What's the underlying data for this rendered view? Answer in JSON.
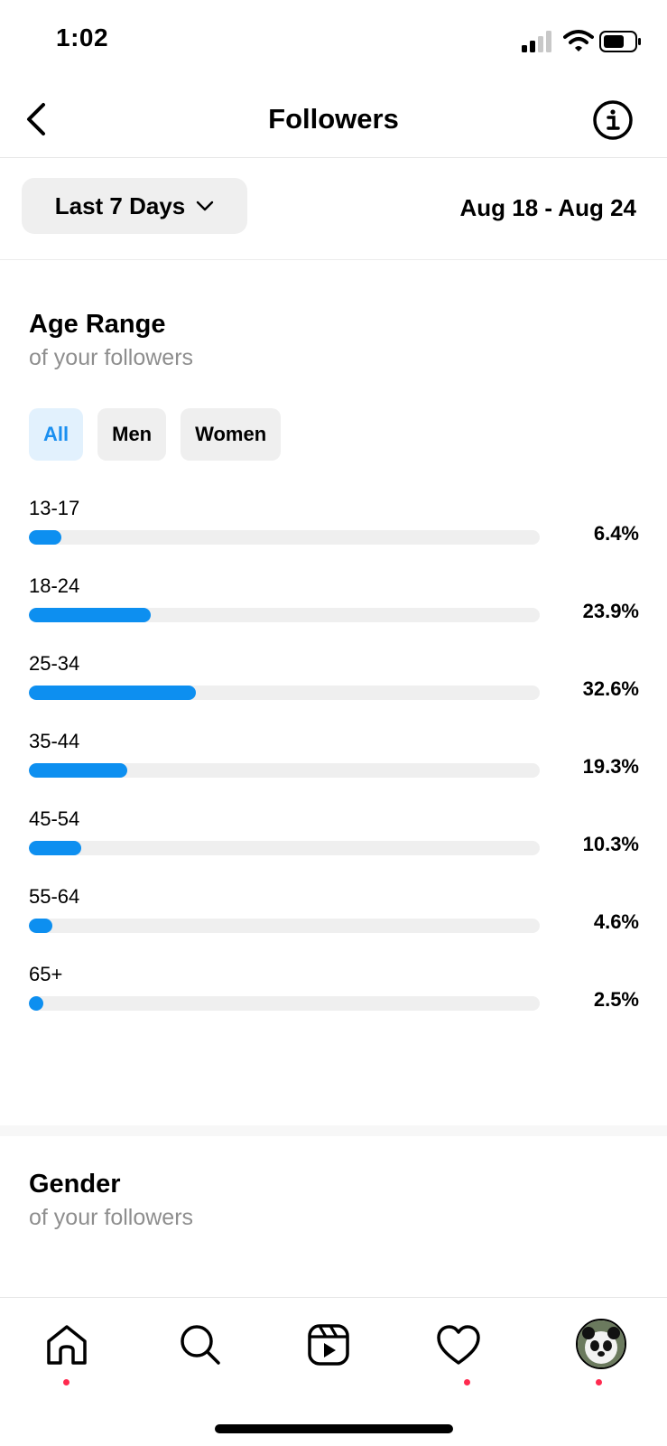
{
  "status": {
    "time": "1:02"
  },
  "header": {
    "title": "Followers"
  },
  "filter": {
    "period": "Last 7 Days",
    "date_range": "Aug 18 - Aug 24"
  },
  "age_section": {
    "title": "Age Range",
    "subtitle": "of your followers",
    "chips": [
      "All",
      "Men",
      "Women"
    ],
    "active_chip": "All",
    "accent_color": "#0d8ff0"
  },
  "chart_data": {
    "type": "bar",
    "categories": [
      "13-17",
      "18-24",
      "25-34",
      "35-44",
      "45-54",
      "55-64",
      "65+"
    ],
    "values": [
      6.4,
      23.9,
      32.6,
      19.3,
      10.3,
      4.6,
      2.5
    ],
    "value_labels": [
      "6.4%",
      "23.9%",
      "32.6%",
      "19.3%",
      "10.3%",
      "4.6%",
      "2.5%"
    ],
    "scale_max": 100
  },
  "gender_section": {
    "title": "Gender",
    "subtitle": "of your followers"
  },
  "nav": {
    "items": [
      "home-icon",
      "search-icon",
      "reels-icon",
      "heart-icon",
      "profile-avatar"
    ],
    "dot_color": "#ff2a4f"
  }
}
